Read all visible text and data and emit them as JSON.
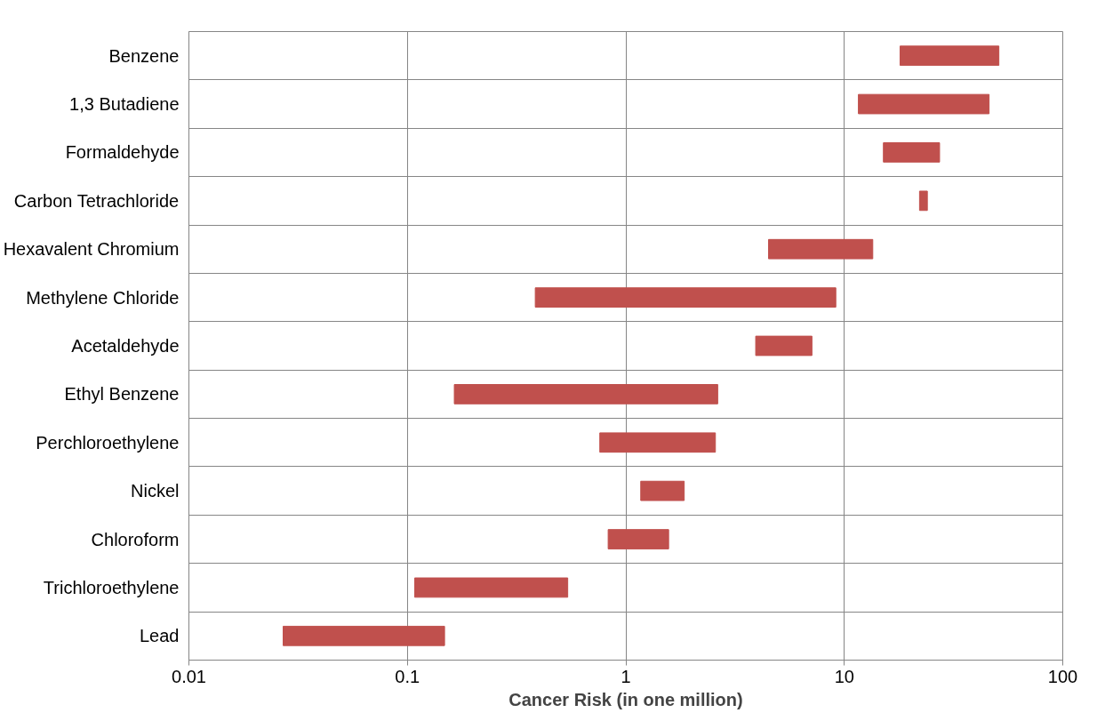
{
  "chart_data": {
    "type": "bar",
    "orientation": "horizontal",
    "xlabel": "Cancer Risk (in one million)",
    "categories": [
      "Benzene",
      "1,3 Butadiene",
      "Formaldehyde",
      "Carbon Tetrachloride",
      "Hexavalent Chromium",
      "Methylene Chloride",
      "Acetaldehyde",
      "Ethyl Benzene",
      "Perchloroethylene",
      "Nickel",
      "Chloroform",
      "Trichloroethylene",
      "Lead"
    ],
    "series": [
      {
        "color": "#c0504d",
        "base": [
          18,
          11.6,
          15.1,
          22.1,
          4.5,
          0.385,
          3.93,
          0.164,
          0.76,
          1.17,
          0.83,
          0.108,
          0.027
        ],
        "values": [
          33,
          34.4,
          12.2,
          1.9,
          9.0,
          8.76,
          3.18,
          2.47,
          1.81,
          0.68,
          0.74,
          0.434,
          0.121
        ]
      }
    ],
    "log": "x",
    "xlim": [
      0.01,
      100
    ],
    "xticks": [
      0.01,
      0.1,
      1,
      10,
      100
    ],
    "grid": true
  }
}
